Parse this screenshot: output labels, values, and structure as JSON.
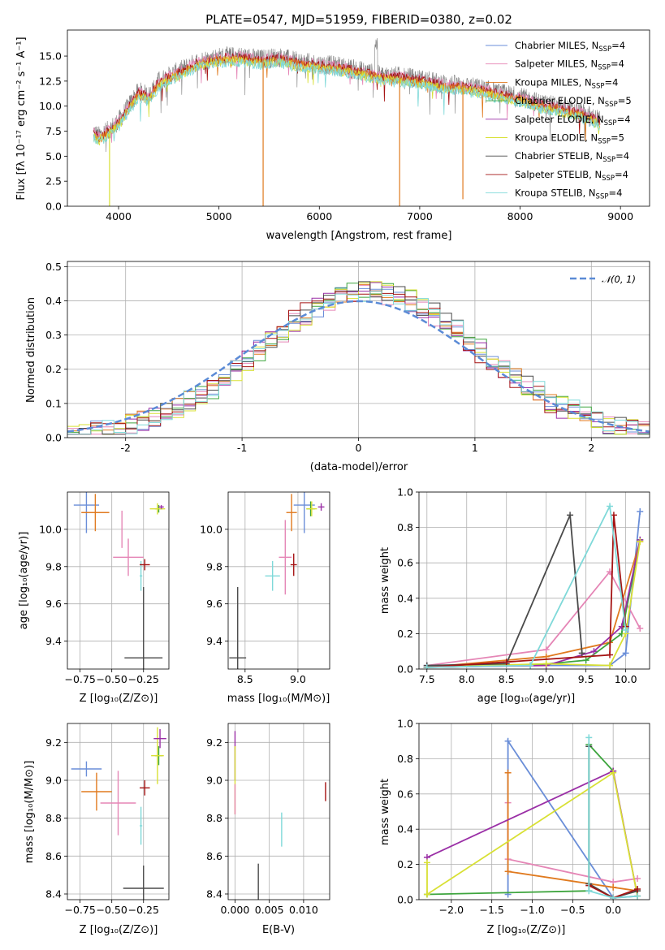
{
  "colors": {
    "Chabrier MILES": "#6a8ed8",
    "Salpeter MILES": "#e586b6",
    "Kroupa MILES": "#e07a1f",
    "Chabrier ELODIE": "#3ea53e",
    "Salpeter ELODIE": "#9a2fa6",
    "Kroupa ELODIE": "#d8e034",
    "Chabrier STELIB": "#4a4a4a",
    "Salpeter STELIB": "#a51414",
    "Kroupa STELIB": "#7fd9d9"
  },
  "chart_data": [
    {
      "id": "spectrum",
      "type": "line",
      "title": "PLATE=0547, MJD=51959, FIBERID=0380, z=0.02",
      "xlabel": "wavelength [Angstrom, rest frame]",
      "ylabel": "Flux [fλ 10⁻¹⁷ erg cm⁻² s⁻¹ A⁻¹]",
      "xlim": [
        3490,
        9290
      ],
      "ylim": [
        0,
        17.6
      ],
      "xticks": [
        4000,
        5000,
        6000,
        7000,
        8000,
        9000
      ],
      "yticks": [
        0.0,
        2.5,
        5.0,
        7.5,
        10.0,
        12.5,
        15.0
      ],
      "grid": false,
      "legend_position": "top-right",
      "legend": [
        {
          "label": "Chabrier MILES, N",
          "sub": "SSP",
          "tail": "=4"
        },
        {
          "label": "Salpeter MILES, N",
          "sub": "SSP",
          "tail": "=4"
        },
        {
          "label": "Kroupa MILES, N",
          "sub": "SSP",
          "tail": "=4"
        },
        {
          "label": "Chabrier ELODIE, N",
          "sub": "SSP",
          "tail": "=5"
        },
        {
          "label": "Salpeter ELODIE, N",
          "sub": "SSP",
          "tail": "=4"
        },
        {
          "label": "Kroupa ELODIE, N",
          "sub": "SSP",
          "tail": "=5"
        },
        {
          "label": "Chabrier STELIB, N",
          "sub": "SSP",
          "tail": "=4"
        },
        {
          "label": "Salpeter STELIB, N",
          "sub": "SSP",
          "tail": "=4"
        },
        {
          "label": "Kroupa STELIB, N",
          "sub": "SSP",
          "tail": "=4"
        }
      ],
      "continuum": {
        "x": [
          3750,
          3800,
          3900,
          4000,
          4100,
          4200,
          4300,
          4400,
          4500,
          4600,
          4700,
          4800,
          5000,
          5200,
          5400,
          5600,
          5800,
          6000,
          6200,
          6400,
          6600,
          6800,
          7000,
          7200,
          7400,
          7600,
          7800,
          8000,
          8200,
          8400,
          8600,
          8800
        ],
        "y": [
          7.5,
          7.0,
          7.6,
          8.5,
          10.0,
          11.5,
          11.0,
          12.5,
          13.0,
          13.5,
          14.0,
          14.5,
          14.9,
          15.0,
          14.7,
          14.9,
          14.4,
          14.2,
          14.0,
          13.6,
          13.1,
          13.0,
          12.7,
          12.3,
          12.1,
          11.8,
          11.3,
          10.9,
          10.3,
          9.9,
          9.4,
          8.6
        ]
      },
      "data_color": "#7f7f7f",
      "drops": [
        {
          "x": 5440,
          "y": 0.0,
          "color": "#e07a1f"
        },
        {
          "x": 6800,
          "y": 0.0,
          "color": "#e07a1f"
        },
        {
          "x": 7430,
          "y": 0.7,
          "color": "#e07a1f"
        },
        {
          "x": 3910,
          "y": 0.0,
          "color": "#d8e034"
        }
      ]
    },
    {
      "id": "residuals",
      "type": "histogram",
      "xlabel": "(data-model)/error",
      "ylabel": "Normed distribution",
      "xlim": [
        -2.5,
        2.5
      ],
      "ylim": [
        0,
        0.515
      ],
      "xticks": [
        -2,
        -1,
        0,
        1,
        2
      ],
      "yticks": [
        0.0,
        0.1,
        0.2,
        0.3,
        0.4,
        0.5
      ],
      "grid": true,
      "legend_position": "top-right",
      "reference_curve": {
        "label": "𝒩(0, 1)",
        "mean": 0,
        "sigma": 1,
        "color": "#5b8bd6"
      },
      "bin_width": 0.1,
      "series_names": [
        "Chabrier MILES",
        "Salpeter MILES",
        "Kroupa MILES",
        "Chabrier ELODIE",
        "Salpeter ELODIE",
        "Kroupa ELODIE",
        "Chabrier STELIB",
        "Salpeter STELIB",
        "Kroupa STELIB"
      ]
    },
    {
      "id": "z-vs-age",
      "type": "errorbar",
      "xlabel": "Z [log₁₀(Z/Z⊙)]",
      "ylabel": "age  [log₁₀(age/yr)]",
      "xlim": [
        -0.85,
        -0.05
      ],
      "ylim": [
        9.25,
        10.2
      ],
      "xticks": [
        -0.75,
        -0.5,
        -0.25
      ],
      "xticklabels": [
        "−0.75",
        "−0.50",
        "−0.25"
      ],
      "yticks": [
        9.4,
        9.6,
        9.8,
        10.0
      ],
      "grid": true,
      "points": [
        {
          "series": "Chabrier MILES",
          "x": -0.7,
          "y": 10.13,
          "xerr": 0.1,
          "yerr": 0.15
        },
        {
          "series": "Kroupa MILES",
          "x": -0.63,
          "y": 10.09,
          "xerr": 0.11,
          "yerr": 0.1
        },
        {
          "series": "Salpeter MILES",
          "x": -0.37,
          "y": 9.85,
          "xerr": 0.12,
          "yerr": 0.1
        },
        {
          "series": "Salpeter MILES",
          "x": -0.42,
          "y": 10.0,
          "xerr": 0.0,
          "yerr": 0.1
        },
        {
          "series": "Kroupa STELIB",
          "x": -0.27,
          "y": 9.75,
          "xerr": 0.01,
          "yerr": 0.08
        },
        {
          "series": "Salpeter STELIB",
          "x": -0.24,
          "y": 9.81,
          "xerr": 0.04,
          "yerr": 0.03
        },
        {
          "series": "Chabrier STELIB",
          "x": -0.25,
          "y": 9.31,
          "xerr": 0.15,
          "yerr": 0.38
        },
        {
          "series": "Chabrier ELODIE",
          "x": -0.13,
          "y": 10.11,
          "xerr": 0.03,
          "yerr": 0.02
        },
        {
          "series": "Kroupa ELODIE",
          "x": -0.14,
          "y": 10.11,
          "xerr": 0.06,
          "yerr": 0.03
        },
        {
          "series": "Salpeter ELODIE",
          "x": -0.11,
          "y": 10.12,
          "xerr": 0.02,
          "yerr": 0.01
        }
      ]
    },
    {
      "id": "mass-vs-age",
      "type": "errorbar",
      "xlabel": "mass [log₁₀(M/M⊙)]",
      "ylabel": "",
      "xlim": [
        8.34,
        9.3
      ],
      "ylim": [
        9.25,
        10.2
      ],
      "xticks": [
        8.5,
        9.0
      ],
      "xticklabels": [
        "8.5",
        "9.0"
      ],
      "yticks": [
        9.4,
        9.6,
        9.8,
        10.0
      ],
      "grid": true,
      "points": [
        {
          "series": "Chabrier STELIB",
          "x": 8.43,
          "y": 9.31,
          "xerr": 0.08,
          "yerr": 0.38
        },
        {
          "series": "Kroupa STELIB",
          "x": 8.76,
          "y": 9.75,
          "xerr": 0.07,
          "yerr": 0.08
        },
        {
          "series": "Salpeter MILES",
          "x": 8.88,
          "y": 9.85,
          "xerr": 0.06,
          "yerr": 0.2
        },
        {
          "series": "Salpeter STELIB",
          "x": 8.96,
          "y": 9.81,
          "xerr": 0.03,
          "yerr": 0.06
        },
        {
          "series": "Kroupa MILES",
          "x": 8.94,
          "y": 10.09,
          "xerr": 0.05,
          "yerr": 0.1
        },
        {
          "series": "Chabrier MILES",
          "x": 9.06,
          "y": 10.13,
          "xerr": 0.1,
          "yerr": 0.15
        },
        {
          "series": "Chabrier ELODIE",
          "x": 9.12,
          "y": 10.11,
          "xerr": 0.04,
          "yerr": 0.04
        },
        {
          "series": "Kroupa ELODIE",
          "x": 9.13,
          "y": 10.11,
          "xerr": 0.05,
          "yerr": 0.04
        },
        {
          "series": "Salpeter ELODIE",
          "x": 9.22,
          "y": 10.12,
          "xerr": 0.03,
          "yerr": 0.02
        }
      ]
    },
    {
      "id": "age-vs-weight",
      "type": "line",
      "xlabel": "age  [log₁₀(age/yr)]",
      "ylabel": "mass weight",
      "xlim": [
        7.4,
        10.3
      ],
      "ylim": [
        0,
        1.0
      ],
      "xticks": [
        7.5,
        8.0,
        8.5,
        9.0,
        9.5,
        10.0
      ],
      "xticklabels": [
        "7.5",
        "8.0",
        "8.5",
        "9.0",
        "9.5",
        "10.0"
      ],
      "yticks": [
        0.0,
        0.2,
        0.4,
        0.6,
        0.8,
        1.0
      ],
      "grid": true,
      "series": [
        {
          "name": "Chabrier MILES",
          "x": [
            7.5,
            9.8,
            10.0,
            10.18
          ],
          "y": [
            0.02,
            0.02,
            0.09,
            0.89
          ]
        },
        {
          "name": "Salpeter MILES",
          "x": [
            7.5,
            9.0,
            9.8,
            10.18
          ],
          "y": [
            0.02,
            0.11,
            0.55,
            0.23
          ]
        },
        {
          "name": "Kroupa MILES",
          "x": [
            7.5,
            9.0,
            9.8,
            10.18
          ],
          "y": [
            0.01,
            0.07,
            0.15,
            0.72
          ]
        },
        {
          "name": "Chabrier ELODIE",
          "x": [
            7.5,
            8.8,
            9.5,
            9.95,
            10.18
          ],
          "y": [
            0.01,
            0.02,
            0.05,
            0.2,
            0.73
          ]
        },
        {
          "name": "Salpeter ELODIE",
          "x": [
            7.5,
            9.0,
            9.6,
            9.95,
            10.18
          ],
          "y": [
            0.01,
            0.02,
            0.1,
            0.24,
            0.73
          ]
        },
        {
          "name": "Kroupa ELODIE",
          "x": [
            7.5,
            9.0,
            9.8,
            10.0,
            10.18
          ],
          "y": [
            0.01,
            0.03,
            0.02,
            0.2,
            0.72
          ]
        },
        {
          "name": "Chabrier STELIB",
          "x": [
            7.5,
            8.5,
            9.3,
            9.45
          ],
          "y": [
            0.02,
            0.03,
            0.87,
            0.09
          ]
        },
        {
          "name": "Salpeter STELIB",
          "x": [
            7.5,
            8.5,
            9.8,
            9.85,
            10.0
          ],
          "y": [
            0.01,
            0.04,
            0.08,
            0.87,
            0.24
          ]
        },
        {
          "name": "Kroupa STELIB",
          "x": [
            7.5,
            8.8,
            9.8,
            10.0
          ],
          "y": [
            0.01,
            0.02,
            0.92,
            0.22
          ]
        }
      ]
    },
    {
      "id": "z-vs-mass",
      "type": "errorbar",
      "xlabel": "Z [log₁₀(Z/Z⊙)]",
      "ylabel": "mass [log₁₀(M/M⊙)]",
      "xlim": [
        -0.85,
        -0.05
      ],
      "ylim": [
        8.37,
        9.3
      ],
      "xticks": [
        -0.75,
        -0.5,
        -0.25
      ],
      "xticklabels": [
        "−0.75",
        "−0.50",
        "−0.25"
      ],
      "yticks": [
        8.4,
        8.6,
        8.8,
        9.0,
        9.2
      ],
      "grid": true,
      "points": [
        {
          "series": "Chabrier MILES",
          "x": -0.7,
          "y": 9.06,
          "xerr": 0.12,
          "yerr": 0.04
        },
        {
          "series": "Kroupa MILES",
          "x": -0.62,
          "y": 8.94,
          "xerr": 0.12,
          "yerr": 0.1
        },
        {
          "series": "Salpeter MILES",
          "x": -0.45,
          "y": 8.88,
          "xerr": 0.14,
          "yerr": 0.17
        },
        {
          "series": "Salpeter STELIB",
          "x": -0.24,
          "y": 8.96,
          "xerr": 0.04,
          "yerr": 0.04
        },
        {
          "series": "Kroupa STELIB",
          "x": -0.27,
          "y": 8.76,
          "xerr": 0.01,
          "yerr": 0.1
        },
        {
          "series": "Chabrier STELIB",
          "x": -0.25,
          "y": 8.43,
          "xerr": 0.16,
          "yerr": 0.12
        },
        {
          "series": "Chabrier ELODIE",
          "x": -0.13,
          "y": 9.13,
          "xerr": 0.03,
          "yerr": 0.05
        },
        {
          "series": "Kroupa ELODIE",
          "x": -0.14,
          "y": 9.13,
          "xerr": 0.05,
          "yerr": 0.15
        },
        {
          "series": "Salpeter ELODIE",
          "x": -0.12,
          "y": 9.22,
          "xerr": 0.05,
          "yerr": 0.05
        }
      ]
    },
    {
      "id": "ebv-vs-mass",
      "type": "errorbar",
      "xlabel": "E(B-V)",
      "ylabel": "",
      "xlim": [
        -0.001,
        0.0138
      ],
      "ylim": [
        8.37,
        9.3
      ],
      "xticks": [
        0.0,
        0.005,
        0.01
      ],
      "xticklabels": [
        "0.000",
        "0.005",
        "0.010"
      ],
      "yticks": [
        8.4,
        8.6,
        8.8,
        9.0,
        9.2
      ],
      "grid": true,
      "points": [
        {
          "series": "Salpeter ELODIE",
          "x": 0.0,
          "y": 9.13,
          "xerr": 0,
          "yerr": 0.13
        },
        {
          "series": "Kroupa ELODIE",
          "x": 0.0,
          "y": 9.0,
          "xerr": 0,
          "yerr": 0.18
        },
        {
          "series": "Salpeter MILES",
          "x": 0.0,
          "y": 8.9,
          "xerr": 0,
          "yerr": 0.08
        },
        {
          "series": "Chabrier STELIB",
          "x": 0.0034,
          "y": 8.46,
          "xerr": 0,
          "yerr": 0.1
        },
        {
          "series": "Kroupa STELIB",
          "x": 0.0068,
          "y": 8.74,
          "xerr": 0,
          "yerr": 0.09
        },
        {
          "series": "Salpeter STELIB",
          "x": 0.0132,
          "y": 8.94,
          "xerr": 0,
          "yerr": 0.05
        }
      ]
    },
    {
      "id": "z-vs-weight",
      "type": "line",
      "xlabel": "Z [log₁₀(Z/Z⊙)]",
      "ylabel": "mass weight",
      "xlim": [
        -2.4,
        0.45
      ],
      "ylim": [
        0,
        1.0
      ],
      "xticks": [
        -2.0,
        -1.5,
        -1.0,
        -0.5,
        0.0
      ],
      "xticklabels": [
        "−2.0",
        "−1.5",
        "−1.0",
        "−0.5",
        "0.0"
      ],
      "yticks": [
        0.0,
        0.2,
        0.4,
        0.6,
        0.8,
        1.0
      ],
      "grid": true,
      "series": [
        {
          "name": "Chabrier MILES",
          "x": [
            -1.3,
            -1.3,
            0.0,
            0.3
          ],
          "y": [
            0.03,
            0.9,
            0.01,
            0.02
          ]
        },
        {
          "name": "Salpeter MILES",
          "x": [
            -1.3,
            -1.3,
            0.0,
            0.3
          ],
          "y": [
            0.55,
            0.23,
            0.1,
            0.12
          ]
        },
        {
          "name": "Kroupa MILES",
          "x": [
            -1.3,
            -1.3,
            0.0,
            0.3
          ],
          "y": [
            0.72,
            0.16,
            0.07,
            0.05
          ]
        },
        {
          "name": "Chabrier ELODIE",
          "x": [
            -2.3,
            -0.3,
            -0.3,
            0.0
          ],
          "y": [
            0.03,
            0.05,
            0.88,
            0.73
          ]
        },
        {
          "name": "Salpeter ELODIE",
          "x": [
            -2.3,
            0.0,
            0.3
          ],
          "y": [
            0.24,
            0.73,
            0.02
          ]
        },
        {
          "name": "Kroupa ELODIE",
          "x": [
            -2.3,
            -2.3,
            0.0,
            0.3
          ],
          "y": [
            0.21,
            0.03,
            0.72,
            0.02
          ]
        },
        {
          "name": "Chabrier STELIB",
          "x": [
            -0.3,
            -0.3,
            0.0,
            0.3
          ],
          "y": [
            0.87,
            0.09,
            0.01,
            0.05
          ]
        },
        {
          "name": "Salpeter STELIB",
          "x": [
            -0.3,
            0.0,
            0.3
          ],
          "y": [
            0.08,
            0.01,
            0.06
          ]
        },
        {
          "name": "Kroupa STELIB",
          "x": [
            -0.3,
            -0.3,
            0.0,
            0.3
          ],
          "y": [
            0.92,
            0.05,
            0.01,
            0.02
          ]
        }
      ]
    }
  ]
}
